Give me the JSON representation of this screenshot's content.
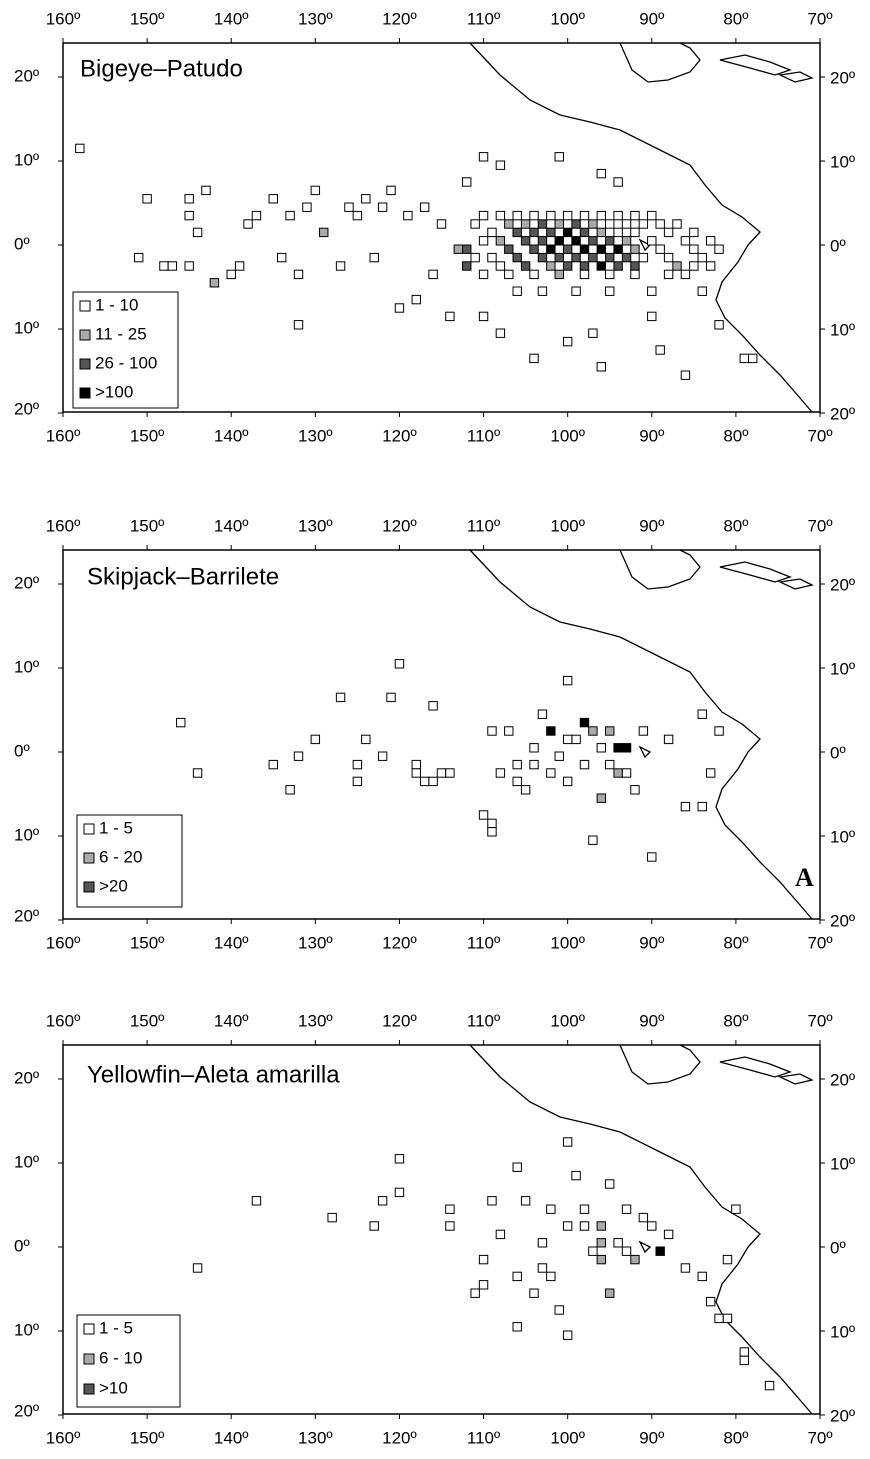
{
  "axes": {
    "xticks": [
      {
        "value": -160,
        "label": "160º"
      },
      {
        "value": -150,
        "label": "150º"
      },
      {
        "value": -140,
        "label": "140º"
      },
      {
        "value": -130,
        "label": "130º"
      },
      {
        "value": -120,
        "label": "120º"
      },
      {
        "value": -110,
        "label": "110º"
      },
      {
        "value": -100,
        "label": "100º"
      },
      {
        "value": -90,
        "label": "90º"
      },
      {
        "value": -80,
        "label": "80º"
      },
      {
        "value": -70,
        "label": "70º"
      }
    ],
    "yticks": [
      {
        "value": 20,
        "label": "20º"
      },
      {
        "value": 10,
        "label": "10º"
      },
      {
        "value": 0,
        "label": "0º"
      },
      {
        "value": -10,
        "label": "10º"
      },
      {
        "value": -20,
        "label": "20º"
      }
    ]
  },
  "panels": [
    {
      "title": "Bigeye–Patudo",
      "legend": [
        "1 - 10",
        "11 - 25",
        "26 - 100",
        ">100"
      ],
      "cells": [
        [
          -158,
          11.5,
          0
        ],
        [
          -151,
          -1.5,
          0
        ],
        [
          -150,
          5.5,
          0
        ],
        [
          -148,
          -2.5,
          0
        ],
        [
          -147,
          -2.5,
          0
        ],
        [
          -145,
          5.5,
          0
        ],
        [
          -145,
          3.5,
          0
        ],
        [
          -145,
          -2.5,
          0
        ],
        [
          -144,
          1.5,
          0
        ],
        [
          -143,
          6.5,
          0
        ],
        [
          -142,
          -4.5,
          1
        ],
        [
          -140,
          -3.5,
          0
        ],
        [
          -139,
          -2.5,
          0
        ],
        [
          -138,
          2.5,
          0
        ],
        [
          -137,
          3.5,
          0
        ],
        [
          -135,
          5.5,
          0
        ],
        [
          -134,
          -1.5,
          0
        ],
        [
          -133,
          3.5,
          0
        ],
        [
          -132,
          -3.5,
          0
        ],
        [
          -132,
          -9.5,
          0
        ],
        [
          -131,
          4.5,
          0
        ],
        [
          -130,
          6.5,
          0
        ],
        [
          -129,
          1.5,
          1
        ],
        [
          -127,
          -2.5,
          0
        ],
        [
          -126,
          4.5,
          0
        ],
        [
          -125,
          3.5,
          0
        ],
        [
          -124,
          5.5,
          0
        ],
        [
          -123,
          -1.5,
          0
        ],
        [
          -122,
          4.5,
          0
        ],
        [
          -121,
          6.5,
          0
        ],
        [
          -120,
          -7.5,
          0
        ],
        [
          -119,
          3.5,
          0
        ],
        [
          -118,
          -6.5,
          0
        ],
        [
          -117,
          4.5,
          0
        ],
        [
          -116,
          -3.5,
          0
        ],
        [
          -115,
          2.5,
          0
        ],
        [
          -114,
          -8.5,
          0
        ],
        [
          -113,
          -0.5,
          1
        ],
        [
          -110,
          3.5,
          0
        ],
        [
          -108,
          3.5,
          0
        ],
        [
          -106,
          3.5,
          0
        ],
        [
          -104,
          3.5,
          0
        ],
        [
          -102,
          3.5,
          0
        ],
        [
          -100,
          3.5,
          0
        ],
        [
          -98,
          3.5,
          0
        ],
        [
          -96,
          3.5,
          0
        ],
        [
          -94,
          3.5,
          0
        ],
        [
          -92,
          3.5,
          0
        ],
        [
          -90,
          3.5,
          0
        ],
        [
          -111,
          2.5,
          0
        ],
        [
          -107,
          2.5,
          1
        ],
        [
          -105,
          2.5,
          1
        ],
        [
          -103,
          2.5,
          2
        ],
        [
          -101,
          2.5,
          1
        ],
        [
          -99,
          2.5,
          2
        ],
        [
          -97,
          2.5,
          1
        ],
        [
          -95,
          2.5,
          0
        ],
        [
          -93,
          2.5,
          0
        ],
        [
          -91,
          2.5,
          0
        ],
        [
          -89,
          2.5,
          0
        ],
        [
          -87,
          2.5,
          0
        ],
        [
          -109,
          1.5,
          0
        ],
        [
          -106,
          1.5,
          2
        ],
        [
          -104,
          1.5,
          2
        ],
        [
          -102,
          1.5,
          2
        ],
        [
          -100,
          1.5,
          3
        ],
        [
          -98,
          1.5,
          2
        ],
        [
          -96,
          1.5,
          1
        ],
        [
          -94,
          1.5,
          0
        ],
        [
          -92,
          1.5,
          0
        ],
        [
          -88,
          1.5,
          0
        ],
        [
          -85,
          1.5,
          0
        ],
        [
          -110,
          0.5,
          0
        ],
        [
          -108,
          0.5,
          1
        ],
        [
          -105,
          0.5,
          2
        ],
        [
          -103,
          0.5,
          2
        ],
        [
          -101,
          0.5,
          3
        ],
        [
          -99,
          0.5,
          3
        ],
        [
          -97,
          0.5,
          2
        ],
        [
          -95,
          0.5,
          2
        ],
        [
          -93,
          0.5,
          1
        ],
        [
          -90,
          0.5,
          0
        ],
        [
          -86,
          0.5,
          0
        ],
        [
          -83,
          0.5,
          0
        ],
        [
          -112,
          -0.5,
          2
        ],
        [
          -107,
          -0.5,
          2
        ],
        [
          -104,
          -0.5,
          2
        ],
        [
          -102,
          -0.5,
          3
        ],
        [
          -100,
          -0.5,
          2
        ],
        [
          -98,
          -0.5,
          3
        ],
        [
          -96,
          -0.5,
          3
        ],
        [
          -94,
          -0.5,
          3
        ],
        [
          -92,
          -0.5,
          1
        ],
        [
          -89,
          -0.5,
          0
        ],
        [
          -85,
          -0.5,
          0
        ],
        [
          -82,
          -0.5,
          0
        ],
        [
          -111,
          -1.5,
          0
        ],
        [
          -109,
          -1.5,
          0
        ],
        [
          -106,
          -1.5,
          2
        ],
        [
          -103,
          -1.5,
          2
        ],
        [
          -101,
          -1.5,
          2
        ],
        [
          -99,
          -1.5,
          2
        ],
        [
          -97,
          -1.5,
          2
        ],
        [
          -95,
          -1.5,
          2
        ],
        [
          -93,
          -1.5,
          2
        ],
        [
          -91,
          -1.5,
          0
        ],
        [
          -88,
          -1.5,
          0
        ],
        [
          -84,
          -1.5,
          0
        ],
        [
          -112,
          -2.5,
          2
        ],
        [
          -108,
          -2.5,
          0
        ],
        [
          -105,
          -2.5,
          2
        ],
        [
          -102,
          -2.5,
          1
        ],
        [
          -100,
          -2.5,
          2
        ],
        [
          -98,
          -2.5,
          2
        ],
        [
          -96,
          -2.5,
          3
        ],
        [
          -94,
          -2.5,
          2
        ],
        [
          -92,
          -2.5,
          2
        ],
        [
          -87,
          -2.5,
          1
        ],
        [
          -85,
          -2.5,
          0
        ],
        [
          -83,
          -2.5,
          0
        ],
        [
          -110,
          -3.5,
          0
        ],
        [
          -107,
          -3.5,
          0
        ],
        [
          -104,
          -3.5,
          0
        ],
        [
          -101,
          -3.5,
          1
        ],
        [
          -98,
          -3.5,
          0
        ],
        [
          -95,
          -3.5,
          0
        ],
        [
          -92,
          -3.5,
          0
        ],
        [
          -88,
          -3.5,
          0
        ],
        [
          -86,
          -3.5,
          0
        ],
        [
          -106,
          -5.5,
          0
        ],
        [
          -103,
          -5.5,
          0
        ],
        [
          -99,
          -5.5,
          0
        ],
        [
          -95,
          -5.5,
          0
        ],
        [
          -90,
          -5.5,
          0
        ],
        [
          -84,
          -5.5,
          0
        ],
        [
          -104,
          -13.5,
          0
        ],
        [
          -100,
          -11.5,
          0
        ],
        [
          -97,
          -10.5,
          0
        ],
        [
          -96,
          -14.5,
          0
        ],
        [
          -90,
          -8.5,
          0
        ],
        [
          -89,
          -12.5,
          0
        ],
        [
          -86,
          -15.5,
          0
        ],
        [
          -82,
          -9.5,
          0
        ],
        [
          -79,
          -13.5,
          0
        ],
        [
          -78,
          -13.5,
          0
        ],
        [
          -108,
          -10.5,
          0
        ],
        [
          -110,
          -8.5,
          0
        ],
        [
          -110,
          10.5,
          0
        ],
        [
          -108,
          9.5,
          0
        ],
        [
          -101,
          10.5,
          0
        ],
        [
          -96,
          8.5,
          0
        ],
        [
          -94,
          7.5,
          0
        ],
        [
          -112,
          7.5,
          0
        ]
      ]
    },
    {
      "title": "Skipjack–Barrilete",
      "legend": [
        "1 - 5",
        "6 - 20",
        ">20"
      ],
      "cells": [
        [
          -146,
          3.5,
          0
        ],
        [
          -144,
          -2.5,
          0
        ],
        [
          -135,
          -1.5,
          0
        ],
        [
          -133,
          -4.5,
          0
        ],
        [
          -132,
          -0.5,
          0
        ],
        [
          -130,
          1.5,
          0
        ],
        [
          -127,
          6.5,
          0
        ],
        [
          -125,
          -1.5,
          0
        ],
        [
          -125,
          -3.5,
          0
        ],
        [
          -124,
          1.5,
          0
        ],
        [
          -121,
          6.5,
          0
        ],
        [
          -122,
          -0.5,
          0
        ],
        [
          -120,
          10.5,
          0
        ],
        [
          -118,
          -1.5,
          0
        ],
        [
          -118,
          -2.5,
          0
        ],
        [
          -117,
          -3.5,
          0
        ],
        [
          -116,
          5.5,
          0
        ],
        [
          -116,
          -3.5,
          0
        ],
        [
          -115,
          -2.5,
          0
        ],
        [
          -114,
          -2.5,
          0
        ],
        [
          -110,
          -7.5,
          0
        ],
        [
          -109,
          -8.5,
          0
        ],
        [
          -109,
          -9.5,
          0
        ],
        [
          -109,
          2.5,
          0
        ],
        [
          -108,
          -2.5,
          0
        ],
        [
          -107,
          2.5,
          0
        ],
        [
          -106,
          -3.5,
          0
        ],
        [
          -105,
          -4.5,
          0
        ],
        [
          -104,
          -1.5,
          0
        ],
        [
          -103,
          4.5,
          0
        ],
        [
          -102,
          2.5,
          3
        ],
        [
          -101,
          -0.5,
          0
        ],
        [
          -100,
          8.5,
          0
        ],
        [
          -100,
          -3.5,
          0
        ],
        [
          -99,
          1.5,
          0
        ],
        [
          -98,
          3.5,
          3
        ],
        [
          -97,
          2.5,
          1
        ],
        [
          -97,
          -10.5,
          0
        ],
        [
          -96,
          0.5,
          0
        ],
        [
          -96,
          -5.5,
          1
        ],
        [
          -95,
          2.5,
          1
        ],
        [
          -95,
          -1.5,
          0
        ],
        [
          -94,
          0.5,
          3
        ],
        [
          -93,
          0.5,
          3
        ],
        [
          -94,
          -2.5,
          1
        ],
        [
          -92,
          -4.5,
          0
        ],
        [
          -91,
          2.5,
          0
        ],
        [
          -90,
          -12.5,
          0
        ],
        [
          -88,
          1.5,
          0
        ],
        [
          -86,
          -6.5,
          0
        ],
        [
          -84,
          -6.5,
          0
        ],
        [
          -84,
          4.5,
          0
        ],
        [
          -83,
          -2.5,
          0
        ],
        [
          -82,
          2.5,
          0
        ],
        [
          -104,
          0.5,
          0
        ],
        [
          -106,
          -1.5,
          0
        ],
        [
          -102,
          -2.5,
          0
        ],
        [
          -100,
          1.5,
          0
        ],
        [
          -98,
          -1.5,
          0
        ],
        [
          -93,
          -2.5,
          0
        ]
      ]
    },
    {
      "title": "Yellowfin–Aleta amarilla",
      "legend": [
        "1 - 5",
        "6 - 10",
        ">10"
      ],
      "cells": [
        [
          -144,
          -2.5,
          0
        ],
        [
          -137,
          5.5,
          0
        ],
        [
          -128,
          3.5,
          0
        ],
        [
          -123,
          2.5,
          0
        ],
        [
          -122,
          5.5,
          0
        ],
        [
          -120,
          10.5,
          0
        ],
        [
          -120,
          6.5,
          0
        ],
        [
          -114,
          4.5,
          0
        ],
        [
          -114,
          2.5,
          0
        ],
        [
          -111,
          -5.5,
          0
        ],
        [
          -110,
          -4.5,
          0
        ],
        [
          -110,
          -1.5,
          0
        ],
        [
          -109,
          5.5,
          0
        ],
        [
          -108,
          1.5,
          0
        ],
        [
          -106,
          -3.5,
          0
        ],
        [
          -106,
          9.5,
          0
        ],
        [
          -106,
          -9.5,
          0
        ],
        [
          -105,
          5.5,
          0
        ],
        [
          -104,
          -5.5,
          0
        ],
        [
          -103,
          0.5,
          0
        ],
        [
          -102,
          -3.5,
          0
        ],
        [
          -101,
          -7.5,
          0
        ],
        [
          -100,
          12.5,
          0
        ],
        [
          -100,
          -10.5,
          0
        ],
        [
          -99,
          8.5,
          0
        ],
        [
          -98,
          2.5,
          0
        ],
        [
          -97,
          -0.5,
          0
        ],
        [
          -96,
          2.5,
          1
        ],
        [
          -96,
          0.5,
          1
        ],
        [
          -96,
          -1.5,
          1
        ],
        [
          -95,
          7.5,
          0
        ],
        [
          -95,
          -5.5,
          1
        ],
        [
          -94,
          0.5,
          0
        ],
        [
          -93,
          -0.5,
          0
        ],
        [
          -92,
          -1.5,
          1
        ],
        [
          -91,
          3.5,
          0
        ],
        [
          -89,
          -0.5,
          3
        ],
        [
          -88,
          1.5,
          0
        ],
        [
          -86,
          -2.5,
          0
        ],
        [
          -84,
          -3.5,
          0
        ],
        [
          -83,
          -6.5,
          0
        ],
        [
          -82,
          -8.5,
          0
        ],
        [
          -81,
          -8.5,
          0
        ],
        [
          -81,
          -1.5,
          0
        ],
        [
          -80,
          4.5,
          0
        ],
        [
          -79,
          -12.5,
          0
        ],
        [
          -79,
          -13.5,
          0
        ],
        [
          -76,
          -16.5,
          0
        ],
        [
          -102,
          4.5,
          0
        ],
        [
          -100,
          2.5,
          0
        ],
        [
          -98,
          4.5,
          0
        ],
        [
          -93,
          4.5,
          0
        ],
        [
          -90,
          2.5,
          0
        ],
        [
          -103,
          -2.5,
          0
        ]
      ]
    }
  ],
  "label": "A"
}
